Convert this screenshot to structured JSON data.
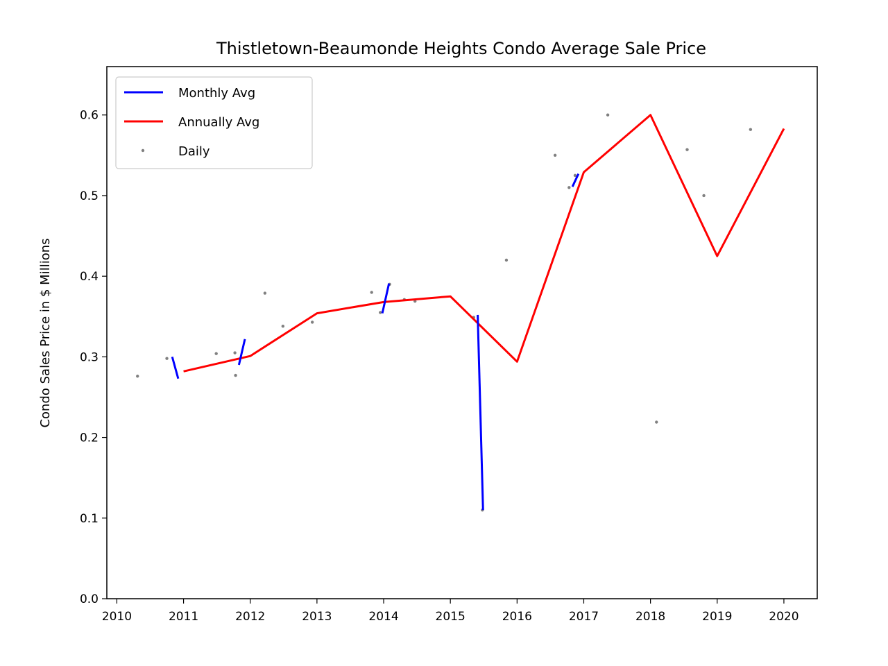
{
  "chart_data": {
    "type": "line",
    "title": "Thistletown-Beaumonde Heights Condo Average Sale Price",
    "xlabel": "",
    "ylabel": "Condo Sales Price in $ Millions",
    "xlim": [
      2009.85,
      2020.5
    ],
    "ylim": [
      0.0,
      0.66
    ],
    "x_ticks": [
      2010,
      2011,
      2012,
      2013,
      2014,
      2015,
      2016,
      2017,
      2018,
      2019,
      2020
    ],
    "x_tick_labels": [
      "2010",
      "2011",
      "2012",
      "2013",
      "2014",
      "2015",
      "2016",
      "2017",
      "2018",
      "2019",
      "2020"
    ],
    "y_ticks": [
      0.0,
      0.1,
      0.2,
      0.3,
      0.4,
      0.5,
      0.6
    ],
    "y_tick_labels": [
      "0.0",
      "0.1",
      "0.2",
      "0.3",
      "0.4",
      "0.5",
      "0.6"
    ],
    "grid": false,
    "legend_position": "top-left",
    "series": [
      {
        "name": "Monthly Avg",
        "kind": "line",
        "color": "#0000ff",
        "segments": [
          [
            [
              2010.83,
              0.3
            ],
            [
              2010.92,
              0.273
            ]
          ],
          [
            [
              2011.83,
              0.29
            ],
            [
              2011.92,
              0.322
            ]
          ],
          [
            [
              2013.98,
              0.354
            ],
            [
              2014.08,
              0.391
            ]
          ],
          [
            [
              2015.41,
              0.352
            ],
            [
              2015.49,
              0.11
            ]
          ],
          [
            [
              2016.83,
              0.511
            ],
            [
              2016.92,
              0.527
            ]
          ]
        ]
      },
      {
        "name": "Annually Avg",
        "kind": "line",
        "color": "#ff0000",
        "x": [
          2011,
          2012,
          2013,
          2014,
          2015,
          2016,
          2017,
          2018,
          2019,
          2020
        ],
        "y": [
          0.282,
          0.301,
          0.354,
          0.368,
          0.375,
          0.294,
          0.529,
          0.6,
          0.425,
          0.583
        ]
      },
      {
        "name": "Daily",
        "kind": "scatter",
        "color": "#808080",
        "points": [
          [
            2010.31,
            0.276
          ],
          [
            2010.75,
            0.298
          ],
          [
            2011.49,
            0.304
          ],
          [
            2011.77,
            0.305
          ],
          [
            2011.78,
            0.277
          ],
          [
            2012.22,
            0.379
          ],
          [
            2012.49,
            0.338
          ],
          [
            2012.93,
            0.343
          ],
          [
            2013.82,
            0.38
          ],
          [
            2013.95,
            0.355
          ],
          [
            2014.09,
            0.39
          ],
          [
            2014.31,
            0.371
          ],
          [
            2014.47,
            0.369
          ],
          [
            2015.35,
            0.349
          ],
          [
            2015.48,
            0.11
          ],
          [
            2015.84,
            0.42
          ],
          [
            2016.57,
            0.55
          ],
          [
            2016.78,
            0.51
          ],
          [
            2016.87,
            0.525
          ],
          [
            2017.36,
            0.6
          ],
          [
            2018.09,
            0.219
          ],
          [
            2018.55,
            0.557
          ],
          [
            2018.8,
            0.5
          ],
          [
            2019.5,
            0.582
          ]
        ]
      }
    ]
  }
}
